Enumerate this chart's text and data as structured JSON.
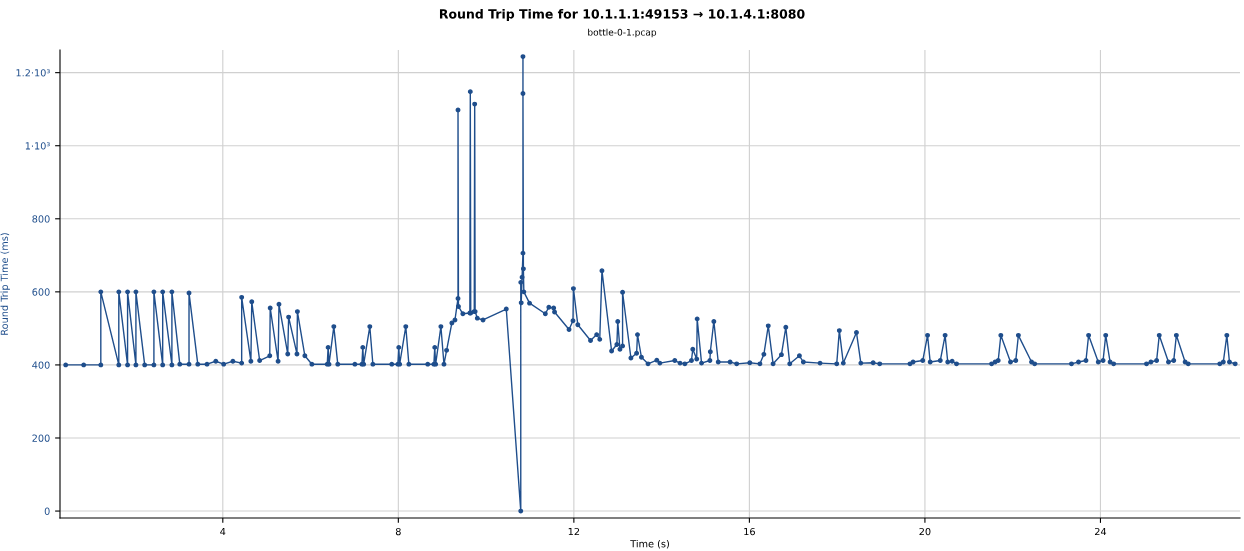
{
  "chart_data": {
    "type": "line",
    "title": "Round Trip Time for 10.1.1.1:49153 → 10.1.4.1:8080",
    "subtitle": "bottle-0-1.pcap",
    "xlabel": "Time (s)",
    "ylabel": "Round Trip Time (ms)",
    "xlim": [
      0.29,
      27.18
    ],
    "xticks": [
      4,
      8,
      12,
      16,
      20,
      24
    ],
    "ylim": [
      -19,
      1262
    ],
    "yticks": [
      0,
      200,
      400,
      600,
      800,
      {
        "value": 1000,
        "label": "1·10³"
      },
      {
        "value": 1200,
        "label": "1.2·10³"
      }
    ],
    "grid": true,
    "marker": "circle",
    "line_style": "solid",
    "series": [
      {
        "color": "#1f4e8c",
        "x": [
          0.42,
          0.83,
          1.22,
          1.22,
          1.63,
          1.63,
          1.83,
          1.83,
          2.02,
          2.02,
          2.22,
          2.43,
          2.43,
          2.63,
          2.63,
          2.84,
          2.84,
          3.02,
          3.23,
          3.23,
          3.43,
          3.64,
          3.84,
          4.02,
          4.23,
          4.43,
          4.43,
          4.64,
          4.66,
          4.84,
          5.07,
          5.08,
          5.26,
          5.28,
          5.48,
          5.5,
          5.69,
          5.7,
          5.87,
          6.03,
          6.38,
          6.4,
          6.42,
          6.53,
          6.62,
          7.01,
          7.17,
          7.19,
          7.21,
          7.35,
          7.42,
          7.85,
          7.99,
          8.01,
          8.03,
          8.17,
          8.24,
          8.67,
          8.81,
          8.83,
          8.85,
          8.97,
          9.04,
          9.1,
          9.22,
          9.29,
          9.36,
          9.36,
          9.37,
          9.47,
          9.63,
          9.64,
          9.65,
          9.73,
          9.74,
          9.75,
          9.8,
          9.93,
          10.46,
          10.79,
          10.79,
          10.8,
          10.82,
          10.84,
          10.84,
          10.84,
          10.85,
          10.86,
          10.99,
          11.35,
          11.43,
          11.54,
          11.56,
          11.89,
          11.98,
          11.99,
          12.09,
          12.38,
          12.52,
          12.59,
          12.64,
          12.86,
          12.98,
          13.0,
          13.05,
          13.11,
          13.11,
          13.3,
          13.43,
          13.45,
          13.54,
          13.69,
          13.89,
          13.96,
          14.3,
          14.42,
          14.53,
          14.68,
          14.71,
          14.8,
          14.81,
          14.91,
          15.1,
          15.11,
          15.19,
          15.29,
          15.56,
          15.71,
          16.01,
          16.24,
          16.33,
          16.43,
          16.54,
          16.73,
          16.83,
          16.92,
          17.14,
          17.23,
          17.61,
          17.99,
          18.05,
          18.14,
          18.44,
          18.54,
          18.82,
          18.97,
          19.66,
          19.73,
          19.95,
          20.06,
          20.12,
          20.35,
          20.46,
          20.52,
          20.62,
          20.72,
          21.52,
          21.6,
          21.67,
          21.73,
          21.95,
          22.07,
          22.13,
          22.43,
          22.5,
          23.34,
          23.5,
          23.67,
          23.73,
          23.95,
          24.06,
          24.12,
          24.22,
          24.3,
          25.05,
          25.15,
          25.28,
          25.34,
          25.55,
          25.67,
          25.73,
          25.93,
          26.0,
          26.72,
          26.8,
          26.88,
          26.94,
          27.07
        ],
        "values": [
          400,
          400,
          400,
          600,
          400,
          600,
          400,
          600,
          400,
          600,
          400,
          400,
          600,
          400,
          600,
          400,
          600,
          402,
          402,
          597,
          402,
          402,
          410,
          402,
          410,
          405,
          585,
          410,
          573,
          412,
          425,
          556,
          410,
          566,
          430,
          531,
          430,
          546,
          425,
          402,
          402,
          448,
          402,
          505,
          402,
          402,
          402,
          448,
          402,
          505,
          402,
          402,
          402,
          448,
          402,
          505,
          402,
          402,
          402,
          448,
          402,
          505,
          402,
          440,
          515,
          523,
          582,
          1098,
          560,
          540,
          542,
          1148,
          542,
          546,
          1114,
          546,
          528,
          523,
          553,
          0,
          626,
          570,
          640,
          706,
          1244,
          1143,
          663,
          600,
          569,
          540,
          558,
          556,
          545,
          497,
          521,
          609,
          510,
          467,
          483,
          470,
          658,
          438,
          456,
          519,
          443,
          452,
          599,
          419,
          432,
          483,
          421,
          403,
          413,
          405,
          412,
          405,
          403,
          412,
          443,
          416,
          526,
          405,
          412,
          436,
          519,
          408,
          408,
          403,
          406,
          403,
          429,
          507,
          403,
          428,
          503,
          403,
          425,
          408,
          405,
          403,
          494,
          405,
          489,
          405,
          406,
          403,
          403,
          408,
          412,
          481,
          408,
          412,
          481,
          408,
          410,
          403,
          403,
          408,
          412,
          481,
          408,
          412,
          481,
          408,
          403,
          403,
          408,
          412,
          481,
          408,
          412,
          481,
          408,
          403,
          403,
          408,
          412,
          481,
          408,
          412,
          481,
          408,
          403,
          403,
          408,
          481,
          408,
          403
        ]
      }
    ]
  }
}
